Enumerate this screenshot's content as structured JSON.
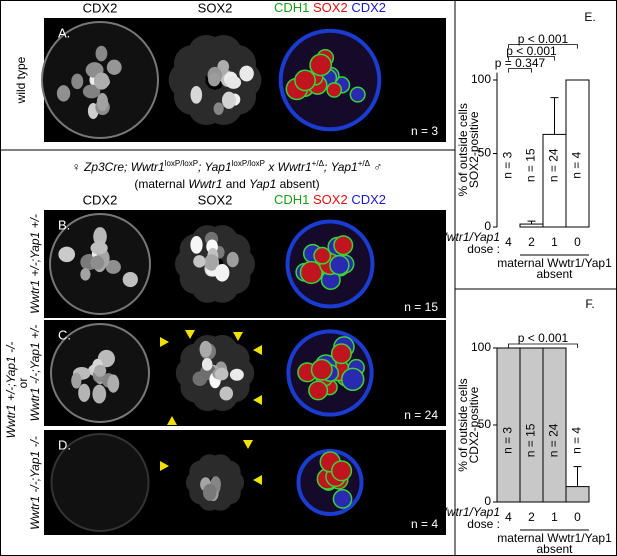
{
  "figure": {
    "headers": [
      "CDX2",
      "SOX2"
    ],
    "composite_header": [
      "CDH1",
      "SOX2",
      "CDX2"
    ],
    "panel_A": {
      "letter": "A.",
      "row_label": "wild type",
      "n": "n = 3"
    },
    "cross_line1": [
      "♀",
      " Zp3Cre; Wwtr1",
      "loxP/loxP",
      "; Yap1",
      "loxP/loxP",
      " x Wwtr1",
      "+/Δ",
      "; Yap1",
      "+/Δ",
      " ♂"
    ],
    "cross_line2": [
      "(maternal ",
      "Wwtr1",
      " and ",
      "Yap1",
      " absent)"
    ],
    "panel_B": {
      "letter": "B.",
      "row_label": "Wwtr1 +/-;Yap1 +/-",
      "n": "n = 15"
    },
    "panel_C": {
      "letter": "C.",
      "row_label": "Wwtr1 -/-;Yap1 +/-",
      "row_label_alt": "Wwtr1 +/-;Yap1 -/-",
      "or": "or",
      "n": "n = 24"
    },
    "panel_D": {
      "letter": "D.",
      "row_label": "Wwtr1 -/-;Yap1 -/-",
      "n": "n = 4"
    }
  },
  "chart_data": [
    {
      "type": "bar",
      "panel": "E.",
      "ylabel": [
        "% of outside cells",
        "SOX2-positive"
      ],
      "categories": [
        "4",
        "2",
        "1",
        "0"
      ],
      "values": [
        0,
        2,
        63,
        100
      ],
      "errors": [
        null,
        2,
        25,
        null
      ],
      "n_labels": [
        "n = 3",
        "n = 15",
        "n = 24",
        "n = 4"
      ],
      "color": "#ffffff",
      "ylim": [
        0,
        105
      ],
      "yticks": [
        0,
        50,
        100
      ],
      "dose_label": [
        "Wwtr1/Yap1",
        "dose :"
      ],
      "group_label": [
        "maternal Wwtr1/Yap1",
        "absent"
      ],
      "annotations": [
        {
          "text": "p = 0.347",
          "from": "4",
          "to": "2"
        },
        {
          "text": "p < 0.001",
          "from": "4",
          "to": "1"
        },
        {
          "text": "p < 0.001",
          "from": "4",
          "to": "0"
        }
      ]
    },
    {
      "type": "bar",
      "panel": "F.",
      "ylabel": [
        "% of outside cells",
        "CDX2-positive"
      ],
      "categories": [
        "4",
        "2",
        "1",
        "0"
      ],
      "values": [
        100,
        100,
        100,
        10
      ],
      "errors": [
        null,
        null,
        null,
        13
      ],
      "n_labels": [
        "n = 3",
        "n = 15",
        "n = 24",
        "n = 4"
      ],
      "color": "#c8c8c8",
      "ylim": [
        0,
        100
      ],
      "yticks": [
        0,
        50,
        100
      ],
      "dose_label": [
        "Wwtr1/Yap1",
        "dose :"
      ],
      "group_label": [
        "maternal Wwtr1/Yap1",
        "absent"
      ],
      "annotations": [
        {
          "text": "p < 0.001",
          "from": "4",
          "to": "0"
        }
      ]
    }
  ]
}
